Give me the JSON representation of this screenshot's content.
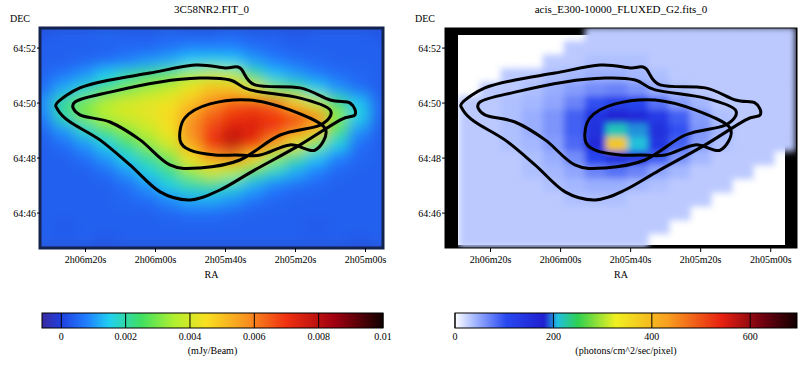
{
  "chart_data": [
    {
      "type": "heatmap",
      "title": "3C58NR2.FIT_0",
      "x_label": "RA",
      "y_label": "DEC",
      "xlim": [
        393,
        295
      ],
      "ylim": [
        44.73,
        52.73
      ],
      "xticks": [
        {
          "value": 380,
          "label": "2h06m20s"
        },
        {
          "value": 360,
          "label": "2h06m00s"
        },
        {
          "value": 340,
          "label": "2h05m40s"
        },
        {
          "value": 320,
          "label": "2h05m20s"
        },
        {
          "value": 300,
          "label": "2h05m00s"
        }
      ],
      "yticks": [
        {
          "value": 52,
          "label": "64:52"
        },
        {
          "value": 50,
          "label": "64:50"
        },
        {
          "value": 48,
          "label": "64:48"
        },
        {
          "value": 46,
          "label": "64:46"
        }
      ],
      "x": [
        392,
        386,
        380,
        374,
        368,
        362,
        356,
        350,
        344,
        338,
        332,
        326,
        320,
        314,
        308,
        302,
        296
      ],
      "y": [
        52.5,
        52,
        51.5,
        51,
        50.5,
        50,
        49.5,
        49,
        48.5,
        48,
        47.5,
        47,
        46.5,
        46,
        45.5,
        45
      ],
      "cells": [
        [
          0.0003,
          0.0004,
          0.0004,
          0.0005,
          0.0004,
          0.0004,
          0.0005,
          0.0004,
          0.0004,
          0.0005,
          0.0004,
          0.0004,
          0.0003,
          0.0004,
          0.0004,
          0.0004,
          0.0003
        ],
        [
          0.0004,
          0.0004,
          0.0004,
          0.0004,
          0.0005,
          0.0005,
          0.0006,
          0.0008,
          0.0008,
          0.0008,
          0.0006,
          0.0005,
          0.0004,
          0.0004,
          0.0004,
          0.0004,
          0.0004
        ],
        [
          0.0004,
          0.0004,
          0.0005,
          0.0006,
          0.0008,
          0.001,
          0.0012,
          0.0015,
          0.0016,
          0.0015,
          0.0011,
          0.0008,
          0.0006,
          0.0005,
          0.0004,
          0.0004,
          0.0004
        ],
        [
          0.0005,
          0.0007,
          0.001,
          0.0015,
          0.002,
          0.0024,
          0.0028,
          0.0034,
          0.0038,
          0.0036,
          0.0022,
          0.0014,
          0.0011,
          0.0008,
          0.0006,
          0.0005,
          0.0004
        ],
        [
          0.0006,
          0.0012,
          0.0018,
          0.0024,
          0.003,
          0.0034,
          0.0038,
          0.0044,
          0.005,
          0.005,
          0.0042,
          0.003,
          0.0024,
          0.0016,
          0.001,
          0.0006,
          0.0004
        ],
        [
          0.001,
          0.0022,
          0.003,
          0.0036,
          0.004,
          0.0042,
          0.0044,
          0.005,
          0.0058,
          0.0064,
          0.0066,
          0.0062,
          0.0048,
          0.0036,
          0.0024,
          0.0014,
          0.0005
        ],
        [
          0.0008,
          0.002,
          0.003,
          0.0036,
          0.004,
          0.0042,
          0.0046,
          0.0056,
          0.0064,
          0.007,
          0.0072,
          0.007,
          0.0068,
          0.006,
          0.0032,
          0.0016,
          0.0005
        ],
        [
          0.0005,
          0.001,
          0.0018,
          0.0026,
          0.0032,
          0.0038,
          0.0044,
          0.0058,
          0.0068,
          0.0076,
          0.0074,
          0.0068,
          0.006,
          0.005,
          0.0026,
          0.001,
          0.0004
        ],
        [
          0.0004,
          0.0006,
          0.001,
          0.0016,
          0.0024,
          0.0032,
          0.004,
          0.0054,
          0.007,
          0.008,
          0.007,
          0.0056,
          0.0042,
          0.003,
          0.0016,
          0.0006,
          0.0004
        ],
        [
          0.0004,
          0.0004,
          0.0006,
          0.001,
          0.0016,
          0.0022,
          0.003,
          0.0044,
          0.0056,
          0.006,
          0.0048,
          0.0032,
          0.0022,
          0.0014,
          0.0008,
          0.0005,
          0.0004
        ],
        [
          0.0004,
          0.0004,
          0.0004,
          0.0006,
          0.001,
          0.0016,
          0.0022,
          0.0032,
          0.004,
          0.0036,
          0.0026,
          0.0018,
          0.0012,
          0.0008,
          0.0005,
          0.0004,
          0.0004
        ],
        [
          0.0004,
          0.0004,
          0.0004,
          0.0004,
          0.0006,
          0.001,
          0.0016,
          0.002,
          0.0022,
          0.0018,
          0.0012,
          0.0008,
          0.0006,
          0.0005,
          0.0004,
          0.0004,
          0.0004
        ],
        [
          0.0004,
          0.0004,
          0.0004,
          0.0004,
          0.0005,
          0.0006,
          0.0009,
          0.0012,
          0.0012,
          0.001,
          0.0007,
          0.0005,
          0.0004,
          0.0004,
          0.0004,
          0.0004,
          0.0004
        ],
        [
          0.0004,
          0.0004,
          0.0004,
          0.0004,
          0.0004,
          0.0004,
          0.0005,
          0.0006,
          0.0006,
          0.0005,
          0.0004,
          0.0004,
          0.0004,
          0.0004,
          0.0004,
          0.0004,
          0.0004
        ],
        [
          0.0004,
          0.0003,
          0.0004,
          0.0004,
          0.0004,
          0.0004,
          0.0004,
          0.0004,
          0.0004,
          0.0004,
          0.0004,
          0.0004,
          0.0004,
          0.0003,
          0.0004,
          0.0004,
          0.0004
        ],
        [
          0.0004,
          0.0004,
          0.0004,
          0.0003,
          0.0004,
          0.0004,
          0.0004,
          0.0004,
          0.0004,
          0.0004,
          0.0004,
          0.0004,
          0.0004,
          0.0004,
          0.0004,
          0.0003,
          0.0004
        ]
      ],
      "colorbar": {
        "label": "(mJy/Beam)",
        "range": [
          -0.0006,
          0.01
        ],
        "ticks": [
          0,
          0.002,
          0.004,
          0.006,
          0.008,
          0.01
        ]
      },
      "contours": [
        [
          [
            387.9,
            50.04
          ],
          [
            381.6,
            50.55
          ],
          [
            373,
            50.84
          ],
          [
            361.6,
            51.09
          ],
          [
            348.7,
            51.38
          ],
          [
            340.1,
            51.28
          ],
          [
            335.9,
            51.28
          ],
          [
            331.6,
            50.66
          ],
          [
            318.7,
            50.55
          ],
          [
            310.1,
            50.11
          ],
          [
            304.4,
            50.0
          ],
          [
            303,
            49.57
          ],
          [
            307.3,
            49.38
          ],
          [
            318.7,
            48.48
          ],
          [
            331.6,
            47.57
          ],
          [
            341.6,
            46.84
          ],
          [
            350.1,
            46.48
          ],
          [
            358.7,
            46.77
          ],
          [
            367.3,
            47.75
          ],
          [
            375.9,
            48.66
          ],
          [
            384.4,
            49.31
          ],
          [
            387.9,
            49.75
          ]
        ],
        [
          [
            383,
            50.04
          ],
          [
            373,
            50.4
          ],
          [
            358.7,
            50.77
          ],
          [
            347.3,
            50.91
          ],
          [
            338.7,
            50.84
          ],
          [
            333,
            50.48
          ],
          [
            318.7,
            50.18
          ],
          [
            310.1,
            49.75
          ],
          [
            313,
            49.2
          ],
          [
            324.4,
            48.84
          ],
          [
            335.9,
            47.93
          ],
          [
            347.3,
            47.64
          ],
          [
            355.9,
            47.75
          ],
          [
            364.4,
            48.66
          ],
          [
            373,
            49.31
          ],
          [
            381.6,
            49.57
          ]
        ],
        [
          [
            351.6,
            49.46
          ],
          [
            344.4,
            49.97
          ],
          [
            333,
            50.11
          ],
          [
            321.6,
            49.75
          ],
          [
            311.6,
            49.09
          ],
          [
            314.4,
            48.29
          ],
          [
            321.6,
            48.48
          ],
          [
            330.1,
            48.11
          ],
          [
            337.3,
            48.11
          ],
          [
            343,
            48.11
          ],
          [
            350.1,
            48.29
          ],
          [
            353,
            48.66
          ]
        ]
      ]
    },
    {
      "type": "heatmap",
      "title": "acis_E300-10000_FLUXED_G2.fits_0",
      "x_label": "RA",
      "y_label": "DEC",
      "xlim": [
        393,
        292.5
      ],
      "ylim": [
        44.73,
        52.73
      ],
      "xticks": [
        {
          "value": 380,
          "label": "2h06m20s"
        },
        {
          "value": 360,
          "label": "2h06m00s"
        },
        {
          "value": 340,
          "label": "2h05m40s"
        },
        {
          "value": 320,
          "label": "2h05m20s"
        },
        {
          "value": 300,
          "label": "2h05m00s"
        }
      ],
      "yticks": [
        {
          "value": 52,
          "label": "64:52"
        },
        {
          "value": 50,
          "label": "64:50"
        },
        {
          "value": 48,
          "label": "64:48"
        },
        {
          "value": 46,
          "label": "64:46"
        }
      ],
      "x": [
        392,
        386,
        380,
        374,
        368,
        362,
        356,
        350,
        344,
        338,
        332,
        326,
        320,
        314,
        308,
        302,
        296
      ],
      "y": [
        52.5,
        52,
        51.5,
        51,
        50.5,
        50,
        49.5,
        49,
        48.5,
        48,
        47.5,
        47,
        46.5,
        46,
        45.5,
        45
      ],
      "cells": [
        [
          null,
          null,
          null,
          null,
          null,
          null,
          null,
          30,
          30,
          30,
          30,
          30,
          30,
          30,
          30,
          30,
          30
        ],
        [
          null,
          null,
          null,
          null,
          null,
          null,
          30,
          30,
          30,
          30,
          30,
          30,
          30,
          30,
          30,
          30,
          30
        ],
        [
          null,
          null,
          null,
          null,
          null,
          30,
          30,
          35,
          35,
          35,
          30,
          30,
          30,
          30,
          30,
          30,
          30
        ],
        [
          null,
          null,
          null,
          30,
          30,
          35,
          40,
          45,
          45,
          40,
          35,
          30,
          30,
          30,
          30,
          30,
          30
        ],
        [
          null,
          null,
          30,
          30,
          35,
          45,
          55,
          65,
          70,
          60,
          45,
          35,
          30,
          30,
          30,
          30,
          30
        ],
        [
          null,
          30,
          30,
          35,
          40,
          50,
          70,
          100,
          120,
          110,
          80,
          55,
          40,
          30,
          30,
          30,
          30
        ],
        [
          null,
          30,
          30,
          35,
          45,
          60,
          90,
          140,
          170,
          160,
          130,
          90,
          55,
          35,
          30,
          30,
          30
        ],
        [
          null,
          30,
          30,
          35,
          45,
          60,
          90,
          150,
          220,
          200,
          150,
          100,
          60,
          40,
          30,
          30,
          30
        ],
        [
          null,
          30,
          30,
          35,
          40,
          55,
          85,
          160,
          380,
          210,
          140,
          90,
          55,
          35,
          30,
          30,
          30
        ],
        [
          null,
          30,
          30,
          30,
          35,
          45,
          65,
          110,
          150,
          130,
          90,
          60,
          40,
          30,
          30,
          30,
          null
        ],
        [
          null,
          30,
          30,
          30,
          35,
          40,
          50,
          70,
          80,
          70,
          50,
          40,
          30,
          30,
          30,
          null,
          null
        ],
        [
          null,
          30,
          30,
          30,
          30,
          35,
          40,
          45,
          45,
          40,
          35,
          30,
          30,
          30,
          null,
          null,
          null
        ],
        [
          null,
          30,
          30,
          30,
          30,
          30,
          35,
          35,
          35,
          30,
          30,
          30,
          30,
          null,
          null,
          null,
          null
        ],
        [
          null,
          30,
          30,
          30,
          30,
          30,
          30,
          30,
          30,
          30,
          30,
          30,
          null,
          null,
          null,
          null,
          null
        ],
        [
          null,
          30,
          30,
          30,
          30,
          30,
          30,
          30,
          30,
          30,
          30,
          null,
          null,
          null,
          null,
          null,
          null
        ],
        [
          null,
          30,
          30,
          30,
          30,
          30,
          30,
          30,
          30,
          30,
          null,
          null,
          null,
          null,
          null,
          null,
          null
        ]
      ],
      "colorbar": {
        "label": "(photons/cm^2/sec/pixel)",
        "range": [
          0,
          695
        ],
        "ticks": [
          0,
          200,
          400,
          600
        ]
      },
      "contours": [
        [
          [
            387.9,
            50.04
          ],
          [
            381.6,
            50.55
          ],
          [
            373,
            50.84
          ],
          [
            361.6,
            51.09
          ],
          [
            348.7,
            51.38
          ],
          [
            340.1,
            51.28
          ],
          [
            335.9,
            51.28
          ],
          [
            331.6,
            50.66
          ],
          [
            318.7,
            50.55
          ],
          [
            310.1,
            50.11
          ],
          [
            304.4,
            50.0
          ],
          [
            303,
            49.57
          ],
          [
            307.3,
            49.38
          ],
          [
            318.7,
            48.48
          ],
          [
            331.6,
            47.57
          ],
          [
            341.6,
            46.84
          ],
          [
            350.1,
            46.48
          ],
          [
            358.7,
            46.77
          ],
          [
            367.3,
            47.75
          ],
          [
            375.9,
            48.66
          ],
          [
            384.4,
            49.31
          ],
          [
            387.9,
            49.75
          ]
        ],
        [
          [
            383,
            50.04
          ],
          [
            373,
            50.4
          ],
          [
            358.7,
            50.77
          ],
          [
            347.3,
            50.91
          ],
          [
            338.7,
            50.84
          ],
          [
            333,
            50.48
          ],
          [
            318.7,
            50.18
          ],
          [
            310.1,
            49.75
          ],
          [
            313,
            49.2
          ],
          [
            324.4,
            48.84
          ],
          [
            335.9,
            47.93
          ],
          [
            347.3,
            47.64
          ],
          [
            355.9,
            47.75
          ],
          [
            364.4,
            48.66
          ],
          [
            373,
            49.31
          ],
          [
            381.6,
            49.57
          ]
        ],
        [
          [
            351.6,
            49.46
          ],
          [
            344.4,
            49.97
          ],
          [
            333,
            50.11
          ],
          [
            321.6,
            49.75
          ],
          [
            311.6,
            49.09
          ],
          [
            314.4,
            48.29
          ],
          [
            321.6,
            48.48
          ],
          [
            330.1,
            48.11
          ],
          [
            337.3,
            48.11
          ],
          [
            343,
            48.11
          ],
          [
            350.1,
            48.29
          ],
          [
            353,
            48.66
          ]
        ]
      ]
    }
  ]
}
